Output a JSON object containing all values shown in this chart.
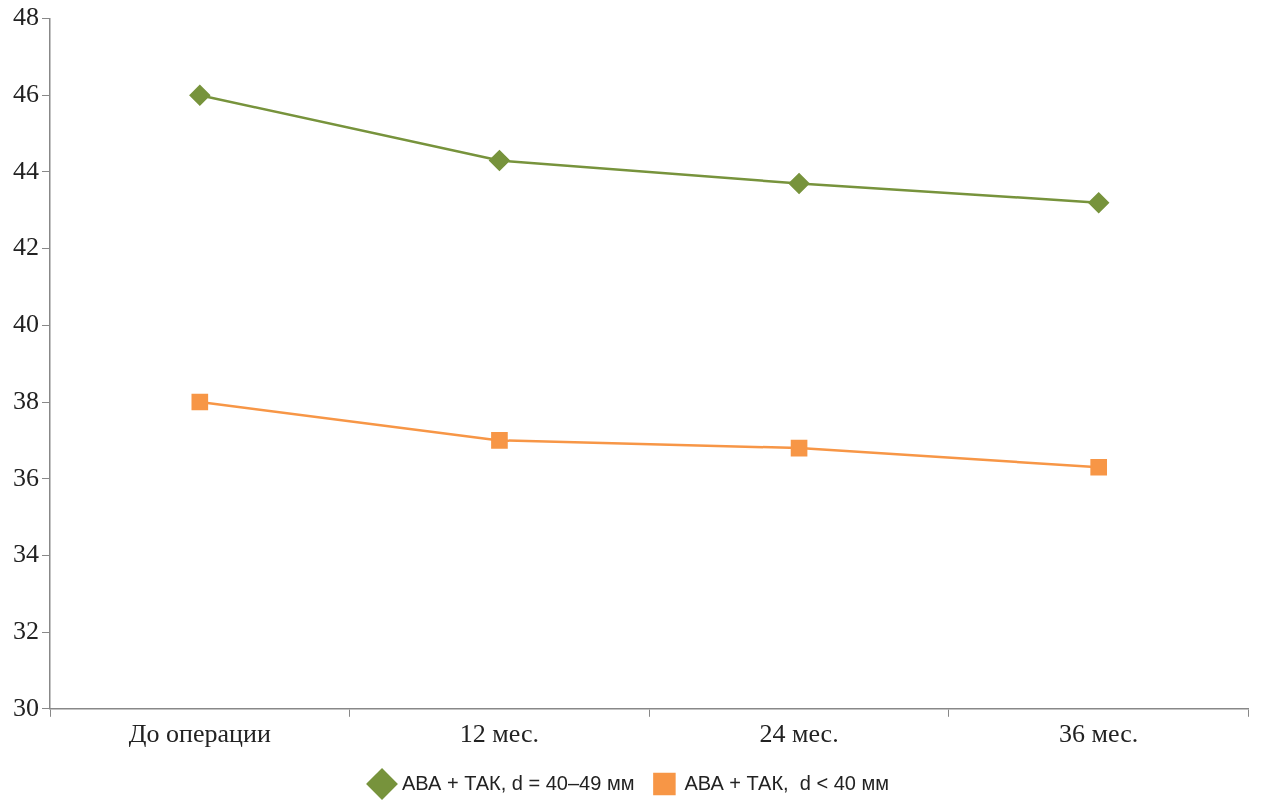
{
  "chart_data": {
    "type": "line",
    "categories": [
      "До операции",
      "12 мес.",
      "24 мес.",
      "36 мес."
    ],
    "series": [
      {
        "name": "АВА + ТАК, d = 40–49 мм",
        "color": "#77933c",
        "values": [
          46.0,
          44.3,
          43.7,
          43.2
        ],
        "marker": "diamond"
      },
      {
        "name": "АВА + ТАК,  d < 40 мм",
        "color": "#f79646",
        "values": [
          38.0,
          37.0,
          36.8,
          36.3
        ],
        "marker": "square"
      }
    ],
    "ylim": [
      30,
      48
    ],
    "yticks": [
      30,
      32,
      34,
      36,
      38,
      40,
      42,
      44,
      46,
      48
    ],
    "grid": false,
    "legend": "bottom",
    "line_style": "solid"
  }
}
